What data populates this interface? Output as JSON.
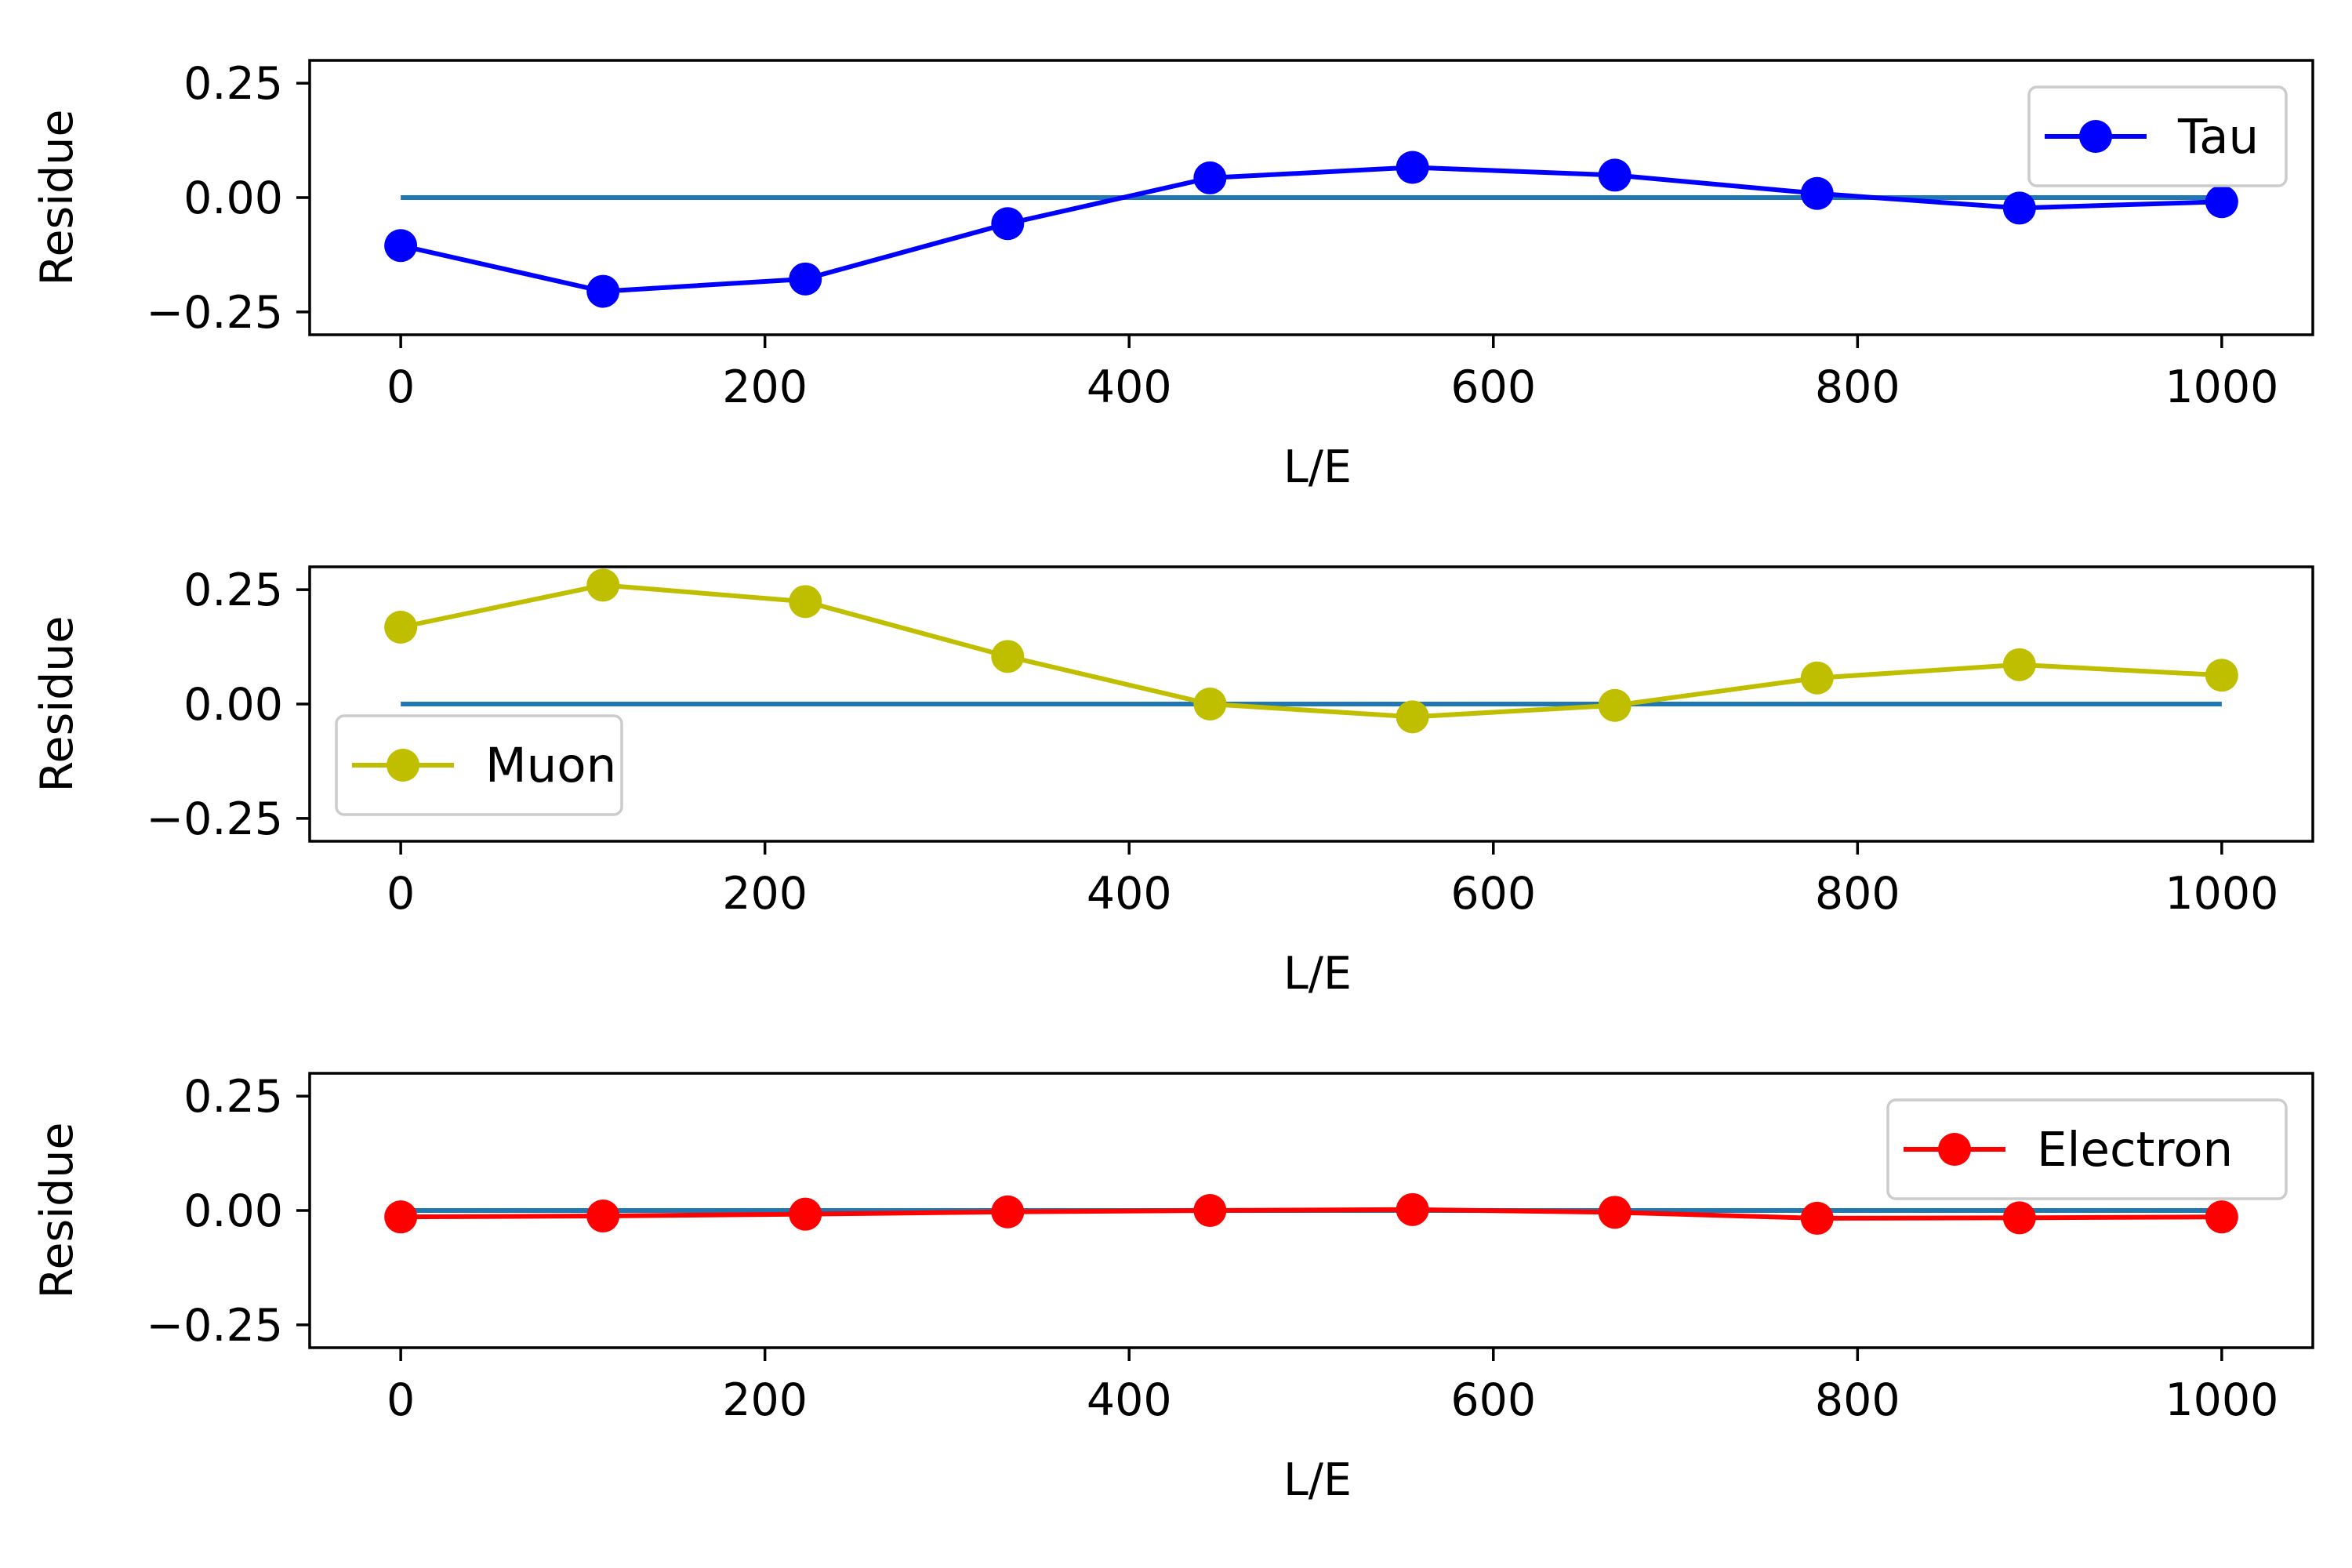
{
  "chart_data": [
    {
      "type": "line",
      "xlabel": "L/E",
      "ylabel": "Residue",
      "xlim": [
        -50,
        1050
      ],
      "ylim": [
        -0.3,
        0.3
      ],
      "xticks": [
        0,
        200,
        400,
        600,
        800,
        1000
      ],
      "yticks": [
        0.25,
        0.0,
        -0.25
      ],
      "xtick_labels": [
        "0",
        "200",
        "400",
        "600",
        "800",
        "1000"
      ],
      "ytick_labels": [
        "0.25",
        "0.00",
        "−0.25"
      ],
      "grid": false,
      "legend_position": "upper-right",
      "baseline": {
        "x": [
          0,
          1000
        ],
        "y": [
          0,
          0
        ],
        "color": "#1f77b4"
      },
      "series": [
        {
          "name": "Tau",
          "color": "#0000ff",
          "marker": "circle",
          "x": [
            0,
            111.1,
            222.2,
            333.3,
            444.4,
            555.6,
            666.7,
            777.8,
            888.9,
            1000
          ],
          "y": [
            -0.105,
            -0.205,
            -0.178,
            -0.057,
            0.043,
            0.066,
            0.049,
            0.009,
            -0.023,
            -0.009
          ]
        }
      ]
    },
    {
      "type": "line",
      "xlabel": "L/E",
      "ylabel": "Residue",
      "xlim": [
        -50,
        1050
      ],
      "ylim": [
        -0.3,
        0.3
      ],
      "xticks": [
        0,
        200,
        400,
        600,
        800,
        1000
      ],
      "yticks": [
        0.25,
        0.0,
        -0.25
      ],
      "xtick_labels": [
        "0",
        "200",
        "400",
        "600",
        "800",
        "1000"
      ],
      "ytick_labels": [
        "0.25",
        "0.00",
        "−0.25"
      ],
      "grid": false,
      "legend_position": "lower-left",
      "baseline": {
        "x": [
          0,
          1000
        ],
        "y": [
          0,
          0
        ],
        "color": "#1f77b4"
      },
      "series": [
        {
          "name": "Muon",
          "color": "#bfbf00",
          "marker": "circle",
          "x": [
            0,
            111.1,
            222.2,
            333.3,
            444.4,
            555.6,
            666.7,
            777.8,
            888.9,
            1000
          ],
          "y": [
            0.168,
            0.26,
            0.224,
            0.104,
            0.0,
            -0.028,
            -0.003,
            0.057,
            0.086,
            0.063
          ]
        }
      ]
    },
    {
      "type": "line",
      "xlabel": "L/E",
      "ylabel": "Residue",
      "xlim": [
        -50,
        1050
      ],
      "ylim": [
        -0.3,
        0.3
      ],
      "xticks": [
        0,
        200,
        400,
        600,
        800,
        1000
      ],
      "yticks": [
        0.25,
        0.0,
        -0.25
      ],
      "xtick_labels": [
        "0",
        "200",
        "400",
        "600",
        "800",
        "1000"
      ],
      "ytick_labels": [
        "0.25",
        "0.00",
        "−0.25"
      ],
      "grid": false,
      "legend_position": "upper-right",
      "baseline": {
        "x": [
          0,
          1000
        ],
        "y": [
          0,
          0
        ],
        "color": "#1f77b4"
      },
      "series": [
        {
          "name": "Electron",
          "color": "#ff0000",
          "marker": "circle",
          "x": [
            0,
            111.1,
            222.2,
            333.3,
            444.4,
            555.6,
            666.7,
            777.8,
            888.9,
            1000
          ],
          "y": [
            -0.014,
            -0.012,
            -0.008,
            -0.003,
            0.0,
            0.002,
            -0.004,
            -0.017,
            -0.016,
            -0.014
          ]
        }
      ]
    }
  ]
}
